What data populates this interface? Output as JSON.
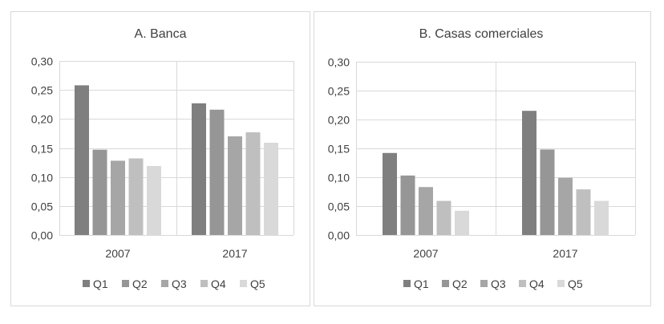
{
  "chart_data": [
    {
      "type": "bar",
      "title": "A. Banca",
      "categories": [
        "2007",
        "2017"
      ],
      "series": [
        {
          "name": "Q1",
          "color": "#7f7f7f",
          "values": [
            0.258,
            0.227
          ]
        },
        {
          "name": "Q2",
          "color": "#969696",
          "values": [
            0.147,
            0.216
          ]
        },
        {
          "name": "Q3",
          "color": "#a6a6a6",
          "values": [
            0.128,
            0.17
          ]
        },
        {
          "name": "Q4",
          "color": "#bfbfbf",
          "values": [
            0.132,
            0.177
          ]
        },
        {
          "name": "Q5",
          "color": "#d9d9d9",
          "values": [
            0.119,
            0.159
          ]
        }
      ],
      "ylim": [
        0,
        0.3
      ],
      "yticks": [
        "0,00",
        "0,05",
        "0,10",
        "0,15",
        "0,20",
        "0,25",
        "0,30"
      ],
      "xlabel": "",
      "ylabel": "",
      "grid": true,
      "legend": "bottom"
    },
    {
      "type": "bar",
      "title": "B. Casas comerciales",
      "categories": [
        "2007",
        "2017"
      ],
      "series": [
        {
          "name": "Q1",
          "color": "#7f7f7f",
          "values": [
            0.142,
            0.215
          ]
        },
        {
          "name": "Q2",
          "color": "#969696",
          "values": [
            0.103,
            0.148
          ]
        },
        {
          "name": "Q3",
          "color": "#a6a6a6",
          "values": [
            0.083,
            0.099
          ]
        },
        {
          "name": "Q4",
          "color": "#bfbfbf",
          "values": [
            0.059,
            0.079
          ]
        },
        {
          "name": "Q5",
          "color": "#d9d9d9",
          "values": [
            0.042,
            0.059
          ]
        }
      ],
      "ylim": [
        0,
        0.3
      ],
      "yticks": [
        "0,00",
        "0,05",
        "0,10",
        "0,15",
        "0,20",
        "0,25",
        "0,30"
      ],
      "xlabel": "",
      "ylabel": "",
      "grid": true,
      "legend": "bottom"
    }
  ]
}
